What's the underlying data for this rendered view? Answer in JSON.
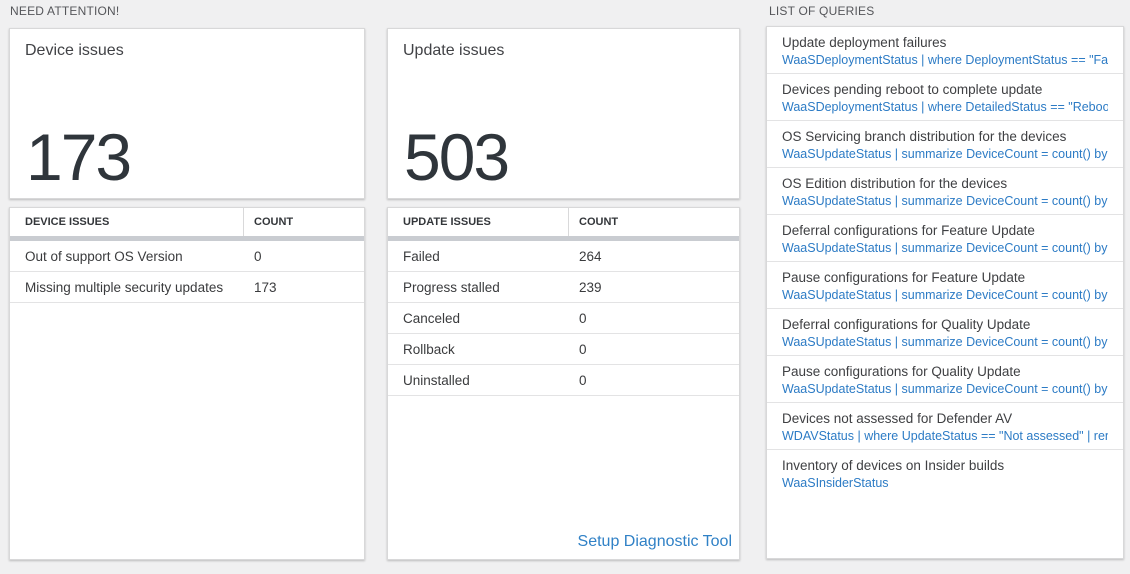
{
  "page": {
    "background": "#f0f0f1",
    "accent_blue": "#2c7bc5",
    "panel_background": "#ffffff"
  },
  "need_attention": {
    "label": "NEED ATTENTION!",
    "device_card": {
      "title": "Device issues",
      "value": "173"
    },
    "device_table": {
      "col_issue": "DEVICE ISSUES",
      "col_count": "COUNT",
      "rows": [
        {
          "name": "Out of support OS Version",
          "count": "0"
        },
        {
          "name": "Missing multiple security updates",
          "count": "173"
        }
      ]
    },
    "update_card": {
      "title": "Update issues",
      "value": "503"
    },
    "update_table": {
      "col_issue": "UPDATE ISSUES",
      "col_count": "COUNT",
      "rows": [
        {
          "name": "Failed",
          "count": "264"
        },
        {
          "name": "Progress stalled",
          "count": "239"
        },
        {
          "name": "Canceled",
          "count": "0"
        },
        {
          "name": "Rollback",
          "count": "0"
        },
        {
          "name": "Uninstalled",
          "count": "0"
        }
      ]
    },
    "setup_link": "Setup Diagnostic Tool"
  },
  "queries": {
    "label": "LIST OF QUERIES",
    "items": [
      {
        "title": "Update deployment failures",
        "query": "WaaSDeploymentStatus | where DeploymentStatus == \"Failed\" |..."
      },
      {
        "title": "Devices pending reboot to complete update",
        "query": "WaaSDeploymentStatus | where DetailedStatus == \"Reboot pend..."
      },
      {
        "title": "OS Servicing branch distribution for the devices",
        "query": "WaaSUpdateStatus | summarize DeviceCount = count() by OSSer..."
      },
      {
        "title": "OS Edition distribution for the devices",
        "query": "WaaSUpdateStatus | summarize DeviceCount = count() by OSEdit..."
      },
      {
        "title": "Deferral configurations for Feature Update",
        "query": "WaaSUpdateStatus | summarize DeviceCount = count() by Featur..."
      },
      {
        "title": "Pause configurations for Feature Update",
        "query": "WaaSUpdateStatus | summarize DeviceCount = count() by Featur..."
      },
      {
        "title": "Deferral configurations for Quality Update",
        "query": "WaaSUpdateStatus | summarize DeviceCount = count() by Qualit..."
      },
      {
        "title": "Pause configurations for Quality Update",
        "query": "WaaSUpdateStatus | summarize DeviceCount = count() by Qualit..."
      },
      {
        "title": "Devices not assessed for Defender AV",
        "query": "WDAVStatus | where UpdateStatus == \"Not assessed\" | render ta..."
      },
      {
        "title": "Inventory of devices on Insider builds",
        "query": "WaaSInsiderStatus"
      }
    ]
  }
}
